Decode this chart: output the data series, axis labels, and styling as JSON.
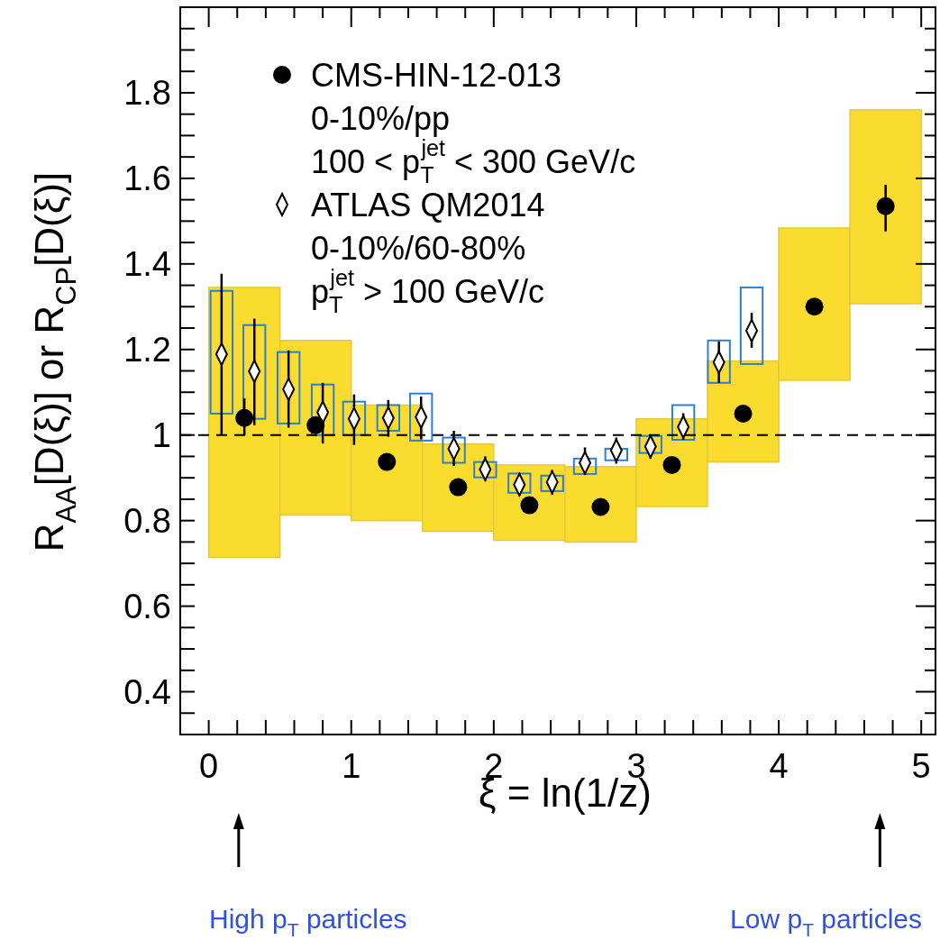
{
  "chart_data": {
    "type": "scatter",
    "xlabel": "ξ = ln(1/z)",
    "ylabel": "R$_{AA}$[D(ξ)] or R$_{CP}$[D(ξ)]",
    "xlim": [
      -0.2,
      5.1
    ],
    "ylim": [
      0.3,
      2.0
    ],
    "xticks": [
      0,
      {
        "value": 0.2,
        "label": null
      },
      {
        "value": 0.4,
        "label": null
      },
      {
        "value": 0.6,
        "label": null
      },
      {
        "value": 0.8,
        "label": null
      },
      1,
      {
        "value": 1.2,
        "label": null
      },
      {
        "value": 1.4,
        "label": null
      },
      {
        "value": 1.6,
        "label": null
      },
      {
        "value": 1.8,
        "label": null
      },
      2,
      {
        "value": 2.2,
        "label": null
      },
      {
        "value": 2.4,
        "label": null
      },
      {
        "value": 2.6,
        "label": null
      },
      {
        "value": 2.8,
        "label": null
      },
      3,
      {
        "value": 3.2,
        "label": null
      },
      {
        "value": 3.4,
        "label": null
      },
      {
        "value": 3.6,
        "label": null
      },
      {
        "value": 3.8,
        "label": null
      },
      4,
      {
        "value": 4.2,
        "label": null
      },
      {
        "value": 4.4,
        "label": null
      },
      {
        "value": 4.6,
        "label": null
      },
      {
        "value": 4.8,
        "label": null
      },
      5
    ],
    "yticks": [
      {
        "value": 0.35,
        "label": null
      },
      0.4,
      {
        "value": 0.45,
        "label": null
      },
      {
        "value": 0.5,
        "label": null
      },
      {
        "value": 0.55,
        "label": null
      },
      0.6,
      {
        "value": 0.65,
        "label": null
      },
      {
        "value": 0.7,
        "label": null
      },
      {
        "value": 0.75,
        "label": null
      },
      0.8,
      {
        "value": 0.85,
        "label": null
      },
      {
        "value": 0.9,
        "label": null
      },
      {
        "value": 0.95,
        "label": null
      },
      1,
      {
        "value": 1.05,
        "label": null
      },
      {
        "value": 1.1,
        "label": null
      },
      {
        "value": 1.15,
        "label": null
      },
      1.2,
      {
        "value": 1.25,
        "label": null
      },
      {
        "value": 1.3,
        "label": null
      },
      {
        "value": 1.35,
        "label": null
      },
      1.4,
      {
        "value": 1.45,
        "label": null
      },
      {
        "value": 1.5,
        "label": null
      },
      {
        "value": 1.55,
        "label": null
      },
      1.6,
      {
        "value": 1.65,
        "label": null
      },
      {
        "value": 1.7,
        "label": null
      },
      {
        "value": 1.75,
        "label": null
      },
      1.8,
      {
        "value": 1.85,
        "label": null
      },
      {
        "value": 1.9,
        "label": null
      },
      {
        "value": 1.95,
        "label": null
      }
    ],
    "grid": false,
    "legend": "top",
    "ref_lines": [
      {
        "axis": "y",
        "value": 1,
        "color": "#000000",
        "line_style": "dashed"
      }
    ],
    "annotations": [
      "0-10%/pp",
      "100 < p$_{T}$$^{jet}$ < 300 GeV/c",
      "0-10%/60-80%",
      "p$_{T}$$^{jet}$ > 100 GeV/c",
      "High p$_{T}$ particles",
      "Low p$_{T}$ particles"
    ],
    "series": [
      {
        "type": "bar",
        "color": "#f9dc2e",
        "x": [
          0.25,
          0.75,
          1.25,
          1.75,
          2.25,
          2.75,
          3.25,
          3.75,
          4.25,
          4.75
        ],
        "base": [
          0.714,
          0.813,
          0.8,
          0.775,
          0.754,
          0.75,
          0.833,
          0.937,
          1.128,
          1.307
        ],
        "values": [
          0.631,
          0.408,
          0.27,
          0.204,
          0.176,
          0.176,
          0.205,
          0.236,
          0.356,
          0.453
        ]
      },
      {
        "type": "bar",
        "color": "#2f7fd0",
        "line_style": "solid",
        "x": [
          0.09,
          0.32,
          0.56,
          0.8,
          1.02,
          1.26,
          1.49,
          1.72,
          1.94,
          2.18,
          2.41,
          2.64,
          2.86,
          3.1,
          3.33,
          3.58,
          3.81
        ],
        "base": [
          1.05,
          1.038,
          1.027,
          1.0,
          1.0,
          1.01,
          0.987,
          0.935,
          0.901,
          0.865,
          0.869,
          0.909,
          0.941,
          0.958,
          0.989,
          1.122,
          1.166
        ],
        "values": [
          0.287,
          0.219,
          0.167,
          0.118,
          0.078,
          0.06,
          0.11,
          0.059,
          0.036,
          0.045,
          0.036,
          0.036,
          0.027,
          0.04,
          0.081,
          0.099,
          0.179
        ]
      },
      {
        "name": "ATLAS QM2014",
        "color": "#000000",
        "marker": "diamond",
        "x": [
          0.09,
          0.32,
          0.56,
          0.8,
          1.02,
          1.26,
          1.49,
          1.72,
          1.94,
          2.18,
          2.41,
          2.64,
          2.86,
          3.1,
          3.33,
          3.58,
          3.81
        ],
        "values": [
          1.189,
          1.149,
          1.107,
          1.053,
          1.038,
          1.04,
          1.042,
          0.968,
          0.92,
          0.884,
          0.89,
          0.935,
          0.964,
          0.973,
          1.019,
          1.17,
          1.244
        ],
        "errors": [
          [
            1.0,
            1.377
          ],
          [
            1.023,
            1.272
          ],
          [
            1.017,
            1.198
          ],
          [
            0.98,
            1.122
          ],
          [
            0.977,
            1.095
          ],
          [
            0.996,
            1.082
          ],
          [
            0.99,
            1.09
          ],
          [
            0.928,
            1.01
          ],
          [
            0.893,
            0.95
          ],
          [
            0.859,
            0.91
          ],
          [
            0.861,
            0.918
          ],
          [
            0.907,
            0.971
          ],
          [
            0.933,
            0.994
          ],
          [
            0.945,
            0.998
          ],
          [
            0.989,
            1.051
          ],
          [
            1.122,
            1.219
          ],
          [
            1.204,
            1.286
          ]
        ]
      },
      {
        "name": "CMS-HIN-12-013",
        "color": "#000000",
        "marker": "circle",
        "x": [
          0.25,
          0.75,
          1.25,
          1.75,
          2.25,
          2.75,
          3.25,
          3.75,
          4.25,
          4.75
        ],
        "values": [
          1.04,
          1.023,
          0.937,
          0.878,
          0.836,
          0.832,
          0.93,
          1.05,
          1.3,
          1.535
        ],
        "errors": [
          [
            1.0,
            1.086
          ],
          null,
          null,
          null,
          null,
          null,
          null,
          null,
          [
            1.285,
            1.315
          ],
          [
            1.476,
            1.585
          ]
        ]
      }
    ]
  }
}
